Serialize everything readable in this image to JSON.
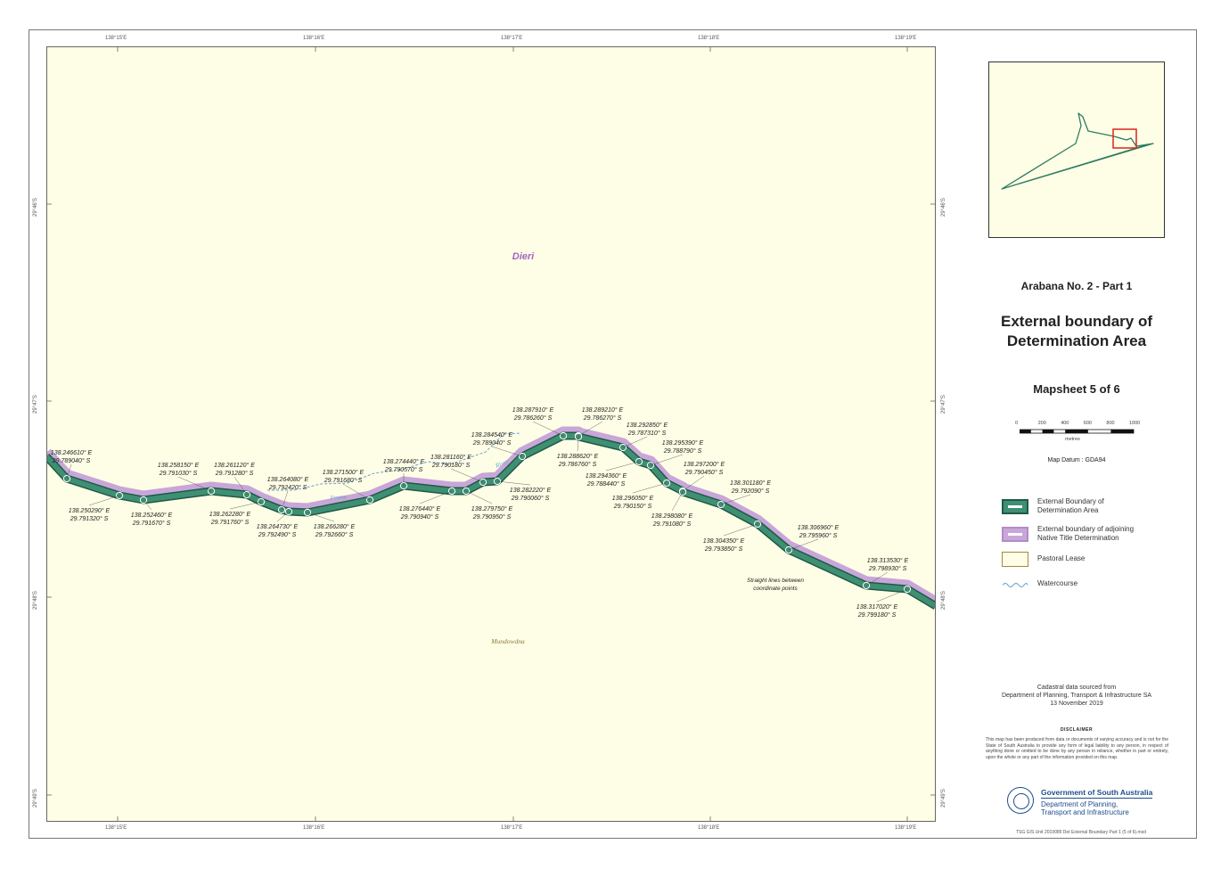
{
  "frame": {
    "top_ticks": [
      "138°15'E",
      "138°16'E",
      "138°17'E",
      "138°18'E",
      "138°19'E"
    ],
    "bottom_ticks": [
      "138°15'E",
      "138°16'E",
      "138°17'E",
      "138°18'E",
      "138°19'E"
    ],
    "left_ticks": [
      "29°46'S",
      "29°47'S",
      "29°48'S",
      "29°49'S"
    ],
    "right_ticks": [
      "29°46'S",
      "29°47'S",
      "29°48'S",
      "29°49'S"
    ]
  },
  "map": {
    "labels": {
      "dieri": "Dieri",
      "river_1": "Frome",
      "river_2": "River",
      "pastoral": "Mundowdna",
      "straight_note_1": "Straight lines between",
      "straight_note_2": "coordinate points"
    },
    "colors": {
      "background": "#fefee6",
      "boundary": "#2e7c62",
      "adjoining": "#c9a6d9",
      "watercourse": "#6c9fcf",
      "pastoral_text": "#8a7a3a",
      "dieri_text": "#a564c4"
    },
    "coordinates": [
      {
        "e": "138.246610° E",
        "s": "29.789040° S"
      },
      {
        "e": "138.250290° E",
        "s": "29.791320° S"
      },
      {
        "e": "138.252460° E",
        "s": "29.791670° S"
      },
      {
        "e": "138.258150° E",
        "s": "29.791030° S"
      },
      {
        "e": "138.261120° E",
        "s": "29.791280° S"
      },
      {
        "e": "138.262280° E",
        "s": "29.791760° S"
      },
      {
        "e": "138.264080° E",
        "s": "29.792420° S"
      },
      {
        "e": "138.264730° E",
        "s": "29.792490° S"
      },
      {
        "e": "138.266280° E",
        "s": "29.792660° S"
      },
      {
        "e": "138.271500° E",
        "s": "29.791680° S"
      },
      {
        "e": "138.274440° E",
        "s": "29.790570° S"
      },
      {
        "e": "138.276440° E",
        "s": "29.790940° S"
      },
      {
        "e": "138.279750° E",
        "s": "29.790950° S"
      },
      {
        "e": "138.281160° E",
        "s": "29.790180° S"
      },
      {
        "e": "138.282220° E",
        "s": "29.790060° S"
      },
      {
        "e": "138.284540° E",
        "s": "29.789040° S"
      },
      {
        "e": "138.287910° E",
        "s": "29.786260° S"
      },
      {
        "e": "138.289210° E",
        "s": "29.786270° S"
      },
      {
        "e": "138.288620° E",
        "s": "29.786760° S"
      },
      {
        "e": "138.292850° E",
        "s": "29.787310° S"
      },
      {
        "e": "138.294360° E",
        "s": "29.788440° S"
      },
      {
        "e": "138.295390° E",
        "s": "29.788790° S"
      },
      {
        "e": "138.296050° E",
        "s": "29.790150° S"
      },
      {
        "e": "138.297200° E",
        "s": "29.790450° S"
      },
      {
        "e": "138.298080° E",
        "s": "29.791080° S"
      },
      {
        "e": "138.301180° E",
        "s": "29.792090° S"
      },
      {
        "e": "138.304350° E",
        "s": "29.793850° S"
      },
      {
        "e": "138.306960° E",
        "s": "29.795960° S"
      },
      {
        "e": "138.313530° E",
        "s": "29.798930° S"
      },
      {
        "e": "138.317020° E",
        "s": "29.799180° S"
      }
    ]
  },
  "panel": {
    "project_title": "Arabana No. 2 - Part 1",
    "main_title_1": "External boundary of",
    "main_title_2": "Determination Area",
    "mapsheet": "Mapsheet 5 of 6",
    "scale_labels": [
      "0",
      "200",
      "400",
      "600",
      "800",
      "1000"
    ],
    "scale_unit": "metres",
    "map_datum": "Map Datum : GDA94",
    "legend": [
      {
        "label_1": "External Boundary of",
        "label_2": "Determination Area"
      },
      {
        "label_1": "External boundary of adjoining",
        "label_2": "Native Title Determination"
      },
      {
        "label_1": "Pastoral Lease",
        "label_2": ""
      },
      {
        "label_1": "Watercourse",
        "label_2": ""
      }
    ],
    "cadastral_1": "Cadastral data sourced from",
    "cadastral_2": "Department of Planning, Transport & Infrastructure SA",
    "cadastral_3": "13 November 2019",
    "disclaimer_head": "DISCLAIMER",
    "disclaimer_body": "This map has been produced from data or documents of varying accuracy and is not for the State of South Australia to provide any form of legal liability to any person, in respect of anything done or omitted to be done by any person in reliance, whether in part or entirely, upon the whole or any part of the information provided on this map.",
    "gov_name": "Government of South Australia",
    "dept_name_1": "Department of Planning,",
    "dept_name_2": "Transport and Infrastructure",
    "footer_code": "TSG GIS Unit 2019085 Det External Boundary Part 1 (5 of 6).mxd"
  }
}
